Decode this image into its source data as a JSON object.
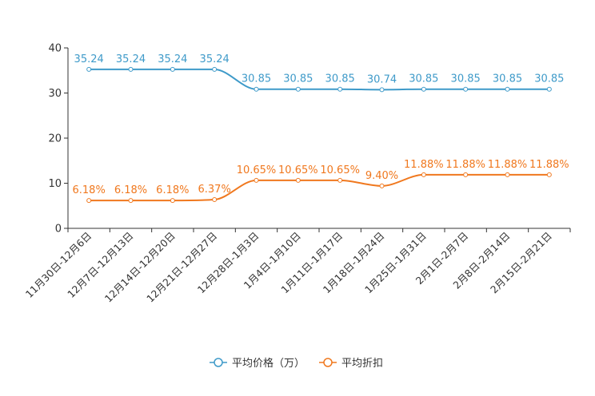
{
  "chart_data": {
    "type": "line",
    "smooth": true,
    "categories": [
      "11月30日-12月6日",
      "12月7日-12月13日",
      "12月14日-12月20日",
      "12月21日-12月27日",
      "12月28日-1月3日",
      "1月4日-1月10日",
      "1月11日-1月17日",
      "1月18日-1月24日",
      "1月25日-1月31日",
      "2月1日-2月7日",
      "2月8日-2月14日",
      "2月15日-2月21日"
    ],
    "ylim": [
      0,
      40
    ],
    "yticks": [
      0,
      10,
      20,
      30,
      40
    ],
    "ytick_labels": [
      "0",
      "10",
      "20",
      "30",
      "40"
    ],
    "grid": false,
    "legend_position": "bottom-center",
    "series": [
      {
        "name": "平均价格（万）",
        "color": "#3e9ac9",
        "values": [
          35.24,
          35.24,
          35.24,
          35.24,
          30.85,
          30.85,
          30.85,
          30.74,
          30.85,
          30.85,
          30.85,
          30.85
        ],
        "labels": [
          "35.24",
          "35.24",
          "35.24",
          "35.24",
          "30.85",
          "30.85",
          "30.85",
          "30.74",
          "30.85",
          "30.85",
          "30.85",
          "30.85"
        ]
      },
      {
        "name": "平均折扣",
        "color": "#f0781e",
        "values": [
          6.18,
          6.18,
          6.18,
          6.37,
          10.65,
          10.65,
          10.65,
          9.4,
          11.88,
          11.88,
          11.88,
          11.88
        ],
        "labels": [
          "6.18%",
          "6.18%",
          "6.18%",
          "6.37%",
          "10.65%",
          "10.65%",
          "10.65%",
          "9.40%",
          "11.88%",
          "11.88%",
          "11.88%",
          "11.88%"
        ]
      }
    ]
  }
}
